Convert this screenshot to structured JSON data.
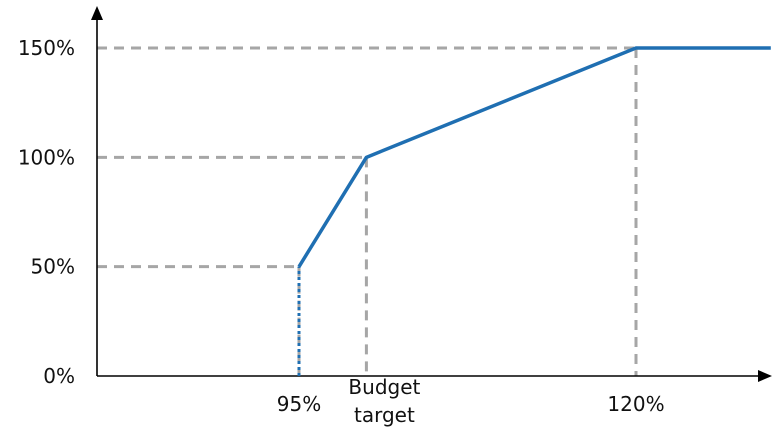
{
  "chart_data": {
    "type": "line",
    "title": "",
    "xlabel": "",
    "ylabel": "",
    "x_ticks": [
      {
        "x": 95,
        "label": "95%"
      },
      {
        "x": 100,
        "label_lines": [
          "Budget",
          "target"
        ]
      },
      {
        "x": 120,
        "label": "120%"
      }
    ],
    "y_ticks": [
      {
        "y": 0,
        "label": "0%"
      },
      {
        "y": 50,
        "label": "50%"
      },
      {
        "y": 100,
        "label": "100%"
      },
      {
        "y": 150,
        "label": "150%"
      }
    ],
    "xlim": [
      80,
      130
    ],
    "ylim": [
      0,
      160
    ],
    "series": [
      {
        "color": "#1f6fb2",
        "points": [
          [
            95,
            0
          ],
          [
            95,
            50
          ],
          [
            100,
            100
          ],
          [
            120,
            150
          ],
          [
            130,
            150
          ]
        ]
      }
    ],
    "guide_lines": [
      {
        "x": 95,
        "y": 50
      },
      {
        "x": 100,
        "y": 100
      },
      {
        "x": 120,
        "y": 150
      }
    ],
    "grid": false,
    "colors": {
      "axis": "#000000",
      "guide": "#a6a6a6",
      "line": "#1f6fb2",
      "text": "#111111"
    }
  }
}
